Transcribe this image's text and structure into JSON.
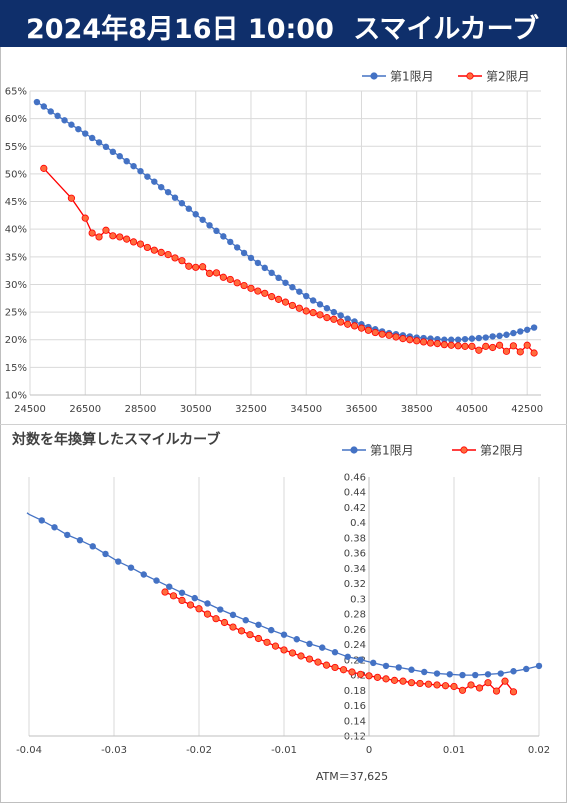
{
  "header": {
    "title": "2024年8月16日 10:00",
    "subtitle": "スマイルカーブ"
  },
  "colors": {
    "series1": "#4472c4",
    "series2": "#ff0000",
    "series2_fill": "#ff6b3d",
    "header_bg": "#0f2f6b"
  },
  "chart_data": [
    {
      "type": "line",
      "title": "",
      "legend": "top-right",
      "grid": true,
      "xlim": [
        24500,
        43000
      ],
      "ylim": [
        0.1,
        0.65
      ],
      "x_ticks": [
        "24500",
        "26500",
        "28500",
        "30500",
        "32500",
        "34500",
        "36500",
        "38500",
        "40500",
        "42500"
      ],
      "y_ticks": [
        "10%",
        "15%",
        "20%",
        "25%",
        "30%",
        "35%",
        "40%",
        "45%",
        "50%",
        "55%",
        "60%",
        "65%"
      ],
      "series": [
        {
          "name": "第1限月",
          "x": [
            24750,
            25000,
            25250,
            25500,
            25750,
            26000,
            26250,
            26500,
            26750,
            27000,
            27250,
            27500,
            27750,
            28000,
            28250,
            28500,
            28750,
            29000,
            29250,
            29500,
            29750,
            30000,
            30250,
            30500,
            30750,
            31000,
            31250,
            31500,
            31750,
            32000,
            32250,
            32500,
            32750,
            33000,
            33250,
            33500,
            33750,
            34000,
            34250,
            34500,
            34750,
            35000,
            35250,
            35500,
            35750,
            36000,
            36250,
            36500,
            36750,
            37000,
            37250,
            37500,
            37750,
            38000,
            38250,
            38500,
            38750,
            39000,
            39250,
            39500,
            39750,
            40000,
            40250,
            40500,
            40750,
            41000,
            41250,
            41500,
            41750,
            42000,
            42250,
            42500,
            42750
          ],
          "y": [
            0.63,
            0.622,
            0.613,
            0.605,
            0.597,
            0.589,
            0.581,
            0.573,
            0.565,
            0.557,
            0.549,
            0.54,
            0.532,
            0.523,
            0.514,
            0.505,
            0.495,
            0.486,
            0.476,
            0.467,
            0.457,
            0.447,
            0.437,
            0.427,
            0.417,
            0.407,
            0.397,
            0.387,
            0.377,
            0.367,
            0.357,
            0.348,
            0.339,
            0.33,
            0.321,
            0.312,
            0.303,
            0.295,
            0.287,
            0.279,
            0.271,
            0.264,
            0.257,
            0.25,
            0.244,
            0.238,
            0.233,
            0.228,
            0.223,
            0.219,
            0.215,
            0.212,
            0.21,
            0.208,
            0.206,
            0.204,
            0.203,
            0.202,
            0.201,
            0.2,
            0.2,
            0.2,
            0.201,
            0.202,
            0.203,
            0.204,
            0.206,
            0.207,
            0.209,
            0.212,
            0.215,
            0.218,
            0.222
          ]
        },
        {
          "name": "第2限月",
          "x": [
            25000,
            26000,
            26500,
            26750,
            27000,
            27250,
            27500,
            27750,
            28000,
            28250,
            28500,
            28750,
            29000,
            29250,
            29500,
            29750,
            30000,
            30250,
            30500,
            30750,
            31000,
            31250,
            31500,
            31750,
            32000,
            32250,
            32500,
            32750,
            33000,
            33250,
            33500,
            33750,
            34000,
            34250,
            34500,
            34750,
            35000,
            35250,
            35500,
            35750,
            36000,
            36250,
            36500,
            36750,
            37000,
            37250,
            37500,
            37750,
            38000,
            38250,
            38500,
            38750,
            39000,
            39250,
            39500,
            39750,
            40000,
            40250,
            40500,
            40750,
            41000,
            41250,
            41500,
            41750,
            42000,
            42250,
            42500,
            42750
          ],
          "y": [
            0.51,
            0.456,
            0.42,
            0.393,
            0.386,
            0.398,
            0.388,
            0.386,
            0.382,
            0.377,
            0.373,
            0.367,
            0.362,
            0.358,
            0.354,
            0.348,
            0.343,
            0.333,
            0.331,
            0.332,
            0.32,
            0.321,
            0.313,
            0.309,
            0.303,
            0.298,
            0.293,
            0.288,
            0.284,
            0.278,
            0.273,
            0.268,
            0.262,
            0.257,
            0.252,
            0.249,
            0.245,
            0.24,
            0.237,
            0.232,
            0.228,
            0.225,
            0.221,
            0.217,
            0.213,
            0.21,
            0.208,
            0.205,
            0.202,
            0.2,
            0.198,
            0.196,
            0.194,
            0.193,
            0.191,
            0.19,
            0.189,
            0.188,
            0.188,
            0.181,
            0.188,
            0.186,
            0.19,
            0.179,
            0.189,
            0.178,
            0.19,
            0.176
          ]
        }
      ]
    },
    {
      "type": "line",
      "title": "対数を年換算したスマイルカーブ",
      "legend": "top-right",
      "grid": true,
      "xlim": [
        -0.04,
        0.02
      ],
      "ylim": [
        0.12,
        0.46
      ],
      "x_ticks": [
        "-0.04",
        "-0.03",
        "-0.02",
        "-0.01",
        "0",
        "0.01",
        "0.02"
      ],
      "y_ticks": [
        "0.12",
        "0.14",
        "0.16",
        "0.18",
        "0.2",
        "0.22",
        "0.24",
        "0.26",
        "0.28",
        "0.3",
        "0.32",
        "0.34",
        "0.36",
        "0.38",
        "0.4",
        "0.42",
        "0.44",
        "0.46"
      ],
      "annotation": "ATM＝37,625",
      "series": [
        {
          "name": "第1限月",
          "x": [
            -0.04,
            -0.0385,
            -0.037,
            -0.0355,
            -0.034,
            -0.0325,
            -0.031,
            -0.0295,
            -0.028,
            -0.0265,
            -0.025,
            -0.0235,
            -0.022,
            -0.0205,
            -0.019,
            -0.0175,
            -0.016,
            -0.0145,
            -0.013,
            -0.0115,
            -0.01,
            -0.0085,
            -0.007,
            -0.0055,
            -0.004,
            -0.0025,
            -0.001,
            0.0005,
            0.002,
            0.0035,
            0.005,
            0.0065,
            0.008,
            0.0095,
            0.011,
            0.0125,
            0.014,
            0.0155,
            0.017,
            0.0185,
            0.02
          ],
          "y": [
            0.411,
            0.403,
            0.394,
            0.384,
            0.377,
            0.369,
            0.359,
            0.349,
            0.341,
            0.332,
            0.324,
            0.316,
            0.308,
            0.301,
            0.294,
            0.286,
            0.279,
            0.272,
            0.266,
            0.259,
            0.253,
            0.247,
            0.241,
            0.236,
            0.23,
            0.224,
            0.22,
            0.216,
            0.212,
            0.21,
            0.207,
            0.204,
            0.202,
            0.201,
            0.2,
            0.2,
            0.201,
            0.202,
            0.205,
            0.208,
            0.212
          ]
        },
        {
          "name": "第2限月",
          "x": [
            -0.024,
            -0.023,
            -0.022,
            -0.021,
            -0.02,
            -0.019,
            -0.018,
            -0.017,
            -0.016,
            -0.015,
            -0.014,
            -0.013,
            -0.012,
            -0.011,
            -0.01,
            -0.009,
            -0.008,
            -0.007,
            -0.006,
            -0.005,
            -0.004,
            -0.003,
            -0.002,
            -0.001,
            0.0,
            0.001,
            0.002,
            0.003,
            0.004,
            0.005,
            0.006,
            0.007,
            0.008,
            0.009,
            0.01,
            0.011,
            0.012,
            0.013,
            0.014,
            0.015,
            0.016,
            0.017
          ],
          "y": [
            0.309,
            0.304,
            0.298,
            0.292,
            0.287,
            0.28,
            0.274,
            0.269,
            0.263,
            0.258,
            0.253,
            0.248,
            0.243,
            0.238,
            0.233,
            0.229,
            0.225,
            0.221,
            0.217,
            0.213,
            0.21,
            0.207,
            0.204,
            0.201,
            0.199,
            0.197,
            0.195,
            0.193,
            0.192,
            0.19,
            0.189,
            0.188,
            0.187,
            0.186,
            0.185,
            0.18,
            0.187,
            0.183,
            0.19,
            0.179,
            0.192,
            0.178
          ]
        }
      ]
    }
  ]
}
